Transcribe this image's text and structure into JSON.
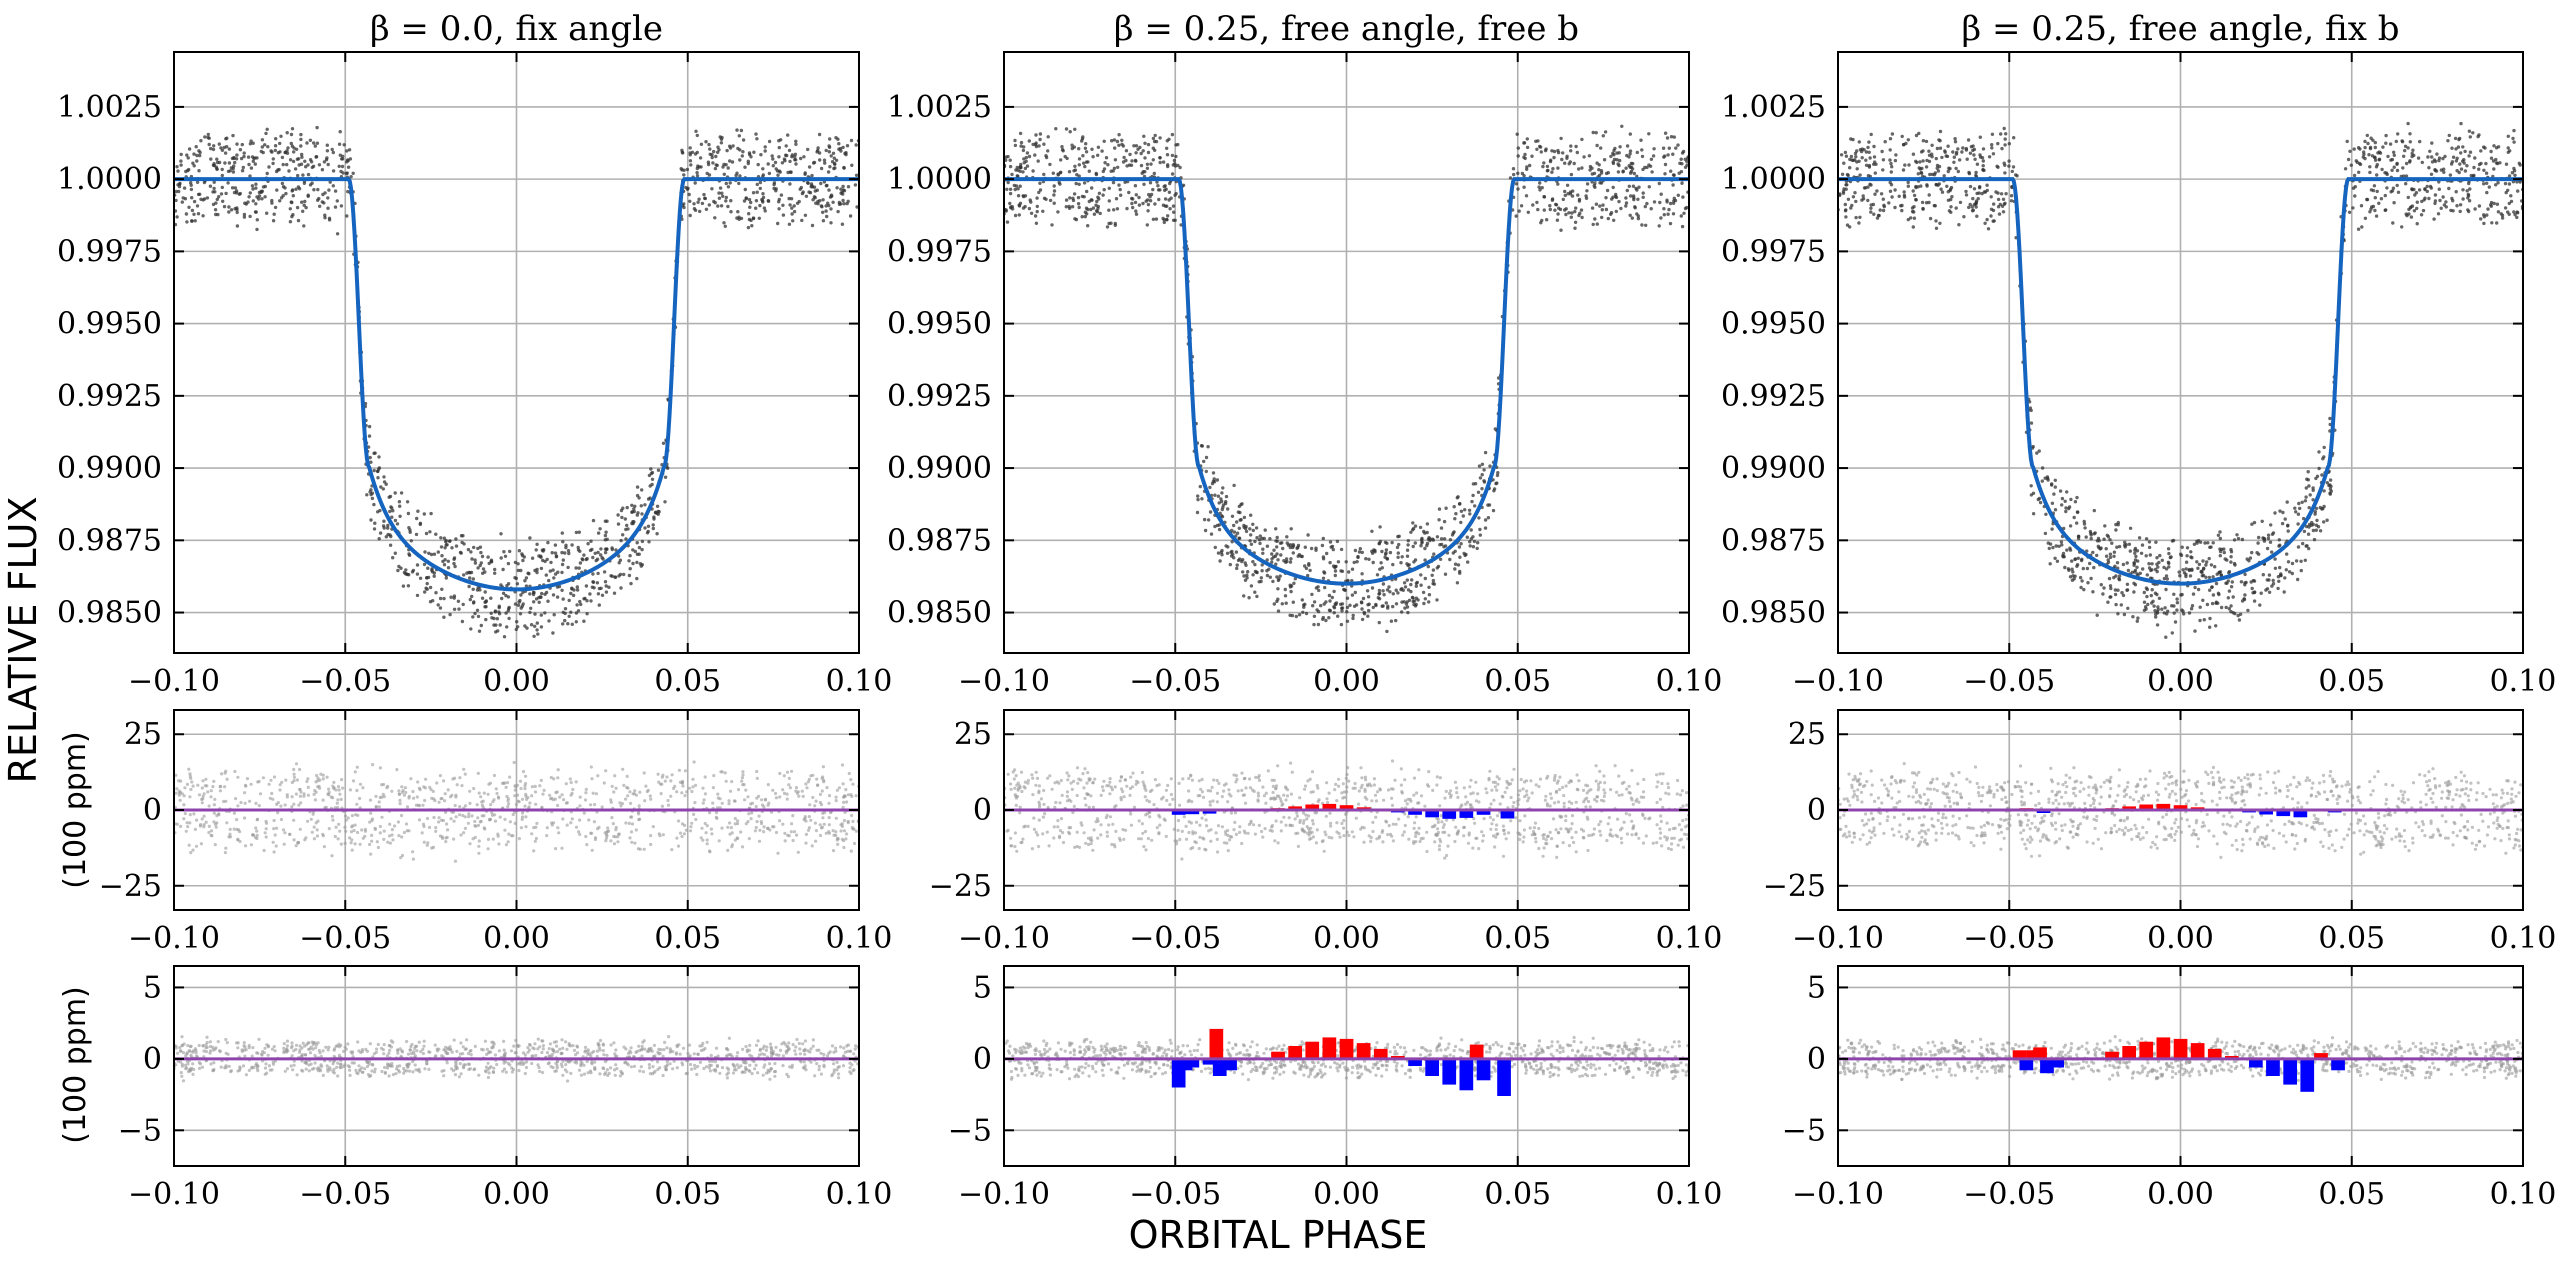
{
  "figure": {
    "ylabel": "RELATIVE FLUX",
    "xlabel": "ORBITAL PHASE",
    "residual_unit": "(100 ppm)"
  },
  "chart_data": [
    {
      "type": "scatter+line",
      "panel": "flux",
      "column": 0,
      "title": "β = 0.0, fix angle",
      "xlim": [
        -0.1,
        0.1
      ],
      "ylim": [
        0.9836,
        1.0044
      ],
      "xticks": [
        -0.1,
        -0.05,
        0.0,
        0.05,
        0.1
      ],
      "yticks": [
        0.985,
        0.9875,
        0.99,
        0.9925,
        0.995,
        0.9975,
        1.0,
        1.0025
      ],
      "ytick_labels": [
        "0.9850",
        "0.9875",
        "0.9900",
        "0.9925",
        "0.9950",
        "0.9975",
        "1.0000",
        "1.0025"
      ],
      "model": {
        "baseline": 1.0,
        "depth": 0.0142,
        "t14_half": 0.049,
        "t23_half": 0.043,
        "curvature": 0.0028,
        "color": "#1565c0"
      },
      "observations": {
        "noise": 0.0014,
        "color": "#333333"
      }
    },
    {
      "type": "scatter+line",
      "panel": "flux",
      "column": 1,
      "title": "β = 0.25, free angle, free b",
      "xlim": [
        -0.1,
        0.1
      ],
      "ylim": [
        0.9836,
        1.0044
      ],
      "xticks": [
        -0.1,
        -0.05,
        0.0,
        0.05,
        0.1
      ],
      "yticks": [
        0.985,
        0.9875,
        0.99,
        0.9925,
        0.995,
        0.9975,
        1.0,
        1.0025
      ],
      "ytick_labels": [
        "0.9850",
        "0.9875",
        "0.9900",
        "0.9925",
        "0.9950",
        "0.9975",
        "1.0000",
        "1.0025"
      ],
      "model": {
        "baseline": 1.0,
        "depth": 0.014,
        "t14_half": 0.049,
        "t23_half": 0.043,
        "curvature": 0.0026,
        "color": "#1565c0"
      },
      "observations": {
        "noise": 0.0014,
        "color": "#333333"
      }
    },
    {
      "type": "scatter+line",
      "panel": "flux",
      "column": 2,
      "title": "β = 0.25, free angle, fix b",
      "xlim": [
        -0.1,
        0.1
      ],
      "ylim": [
        0.9836,
        1.0044
      ],
      "xticks": [
        -0.1,
        -0.05,
        0.0,
        0.05,
        0.1
      ],
      "yticks": [
        0.985,
        0.9875,
        0.99,
        0.9925,
        0.995,
        0.9975,
        1.0,
        1.0025
      ],
      "ytick_labels": [
        "0.9850",
        "0.9875",
        "0.9900",
        "0.9925",
        "0.9950",
        "0.9975",
        "1.0000",
        "1.0025"
      ],
      "model": {
        "baseline": 1.0,
        "depth": 0.014,
        "t14_half": 0.049,
        "t23_half": 0.043,
        "curvature": 0.0026,
        "color": "#1565c0"
      },
      "observations": {
        "noise": 0.0014,
        "color": "#333333"
      }
    },
    {
      "type": "scatter+bar",
      "panel": "residual_100ppm_a",
      "column": 0,
      "xlim": [
        -0.1,
        0.1
      ],
      "ylim": [
        -33,
        33
      ],
      "xticks": [
        -0.1,
        -0.05,
        0.0,
        0.05,
        0.1
      ],
      "yticks": [
        -25,
        0,
        25
      ],
      "zero_line_color": "#8e44ad",
      "scatter_amplitude": 17,
      "bars": []
    },
    {
      "type": "scatter+bar",
      "panel": "residual_100ppm_a",
      "column": 1,
      "xlim": [
        -0.1,
        0.1
      ],
      "ylim": [
        -33,
        33
      ],
      "xticks": [
        -0.1,
        -0.05,
        0.0,
        0.05,
        0.1
      ],
      "yticks": [
        -25,
        0,
        25
      ],
      "zero_line_color": "#8e44ad",
      "scatter_amplitude": 17,
      "bars": [
        {
          "x": -0.049,
          "value": -1.6
        },
        {
          "x": -0.045,
          "value": -1.4
        },
        {
          "x": -0.04,
          "value": -1.2
        },
        {
          "x": -0.02,
          "value": 0.6
        },
        {
          "x": -0.015,
          "value": 1.2
        },
        {
          "x": -0.01,
          "value": 1.8
        },
        {
          "x": -0.005,
          "value": 2.0
        },
        {
          "x": 0.0,
          "value": 1.6
        },
        {
          "x": 0.005,
          "value": 0.9
        },
        {
          "x": 0.015,
          "value": -0.8
        },
        {
          "x": 0.02,
          "value": -1.6
        },
        {
          "x": 0.025,
          "value": -2.4
        },
        {
          "x": 0.03,
          "value": -2.9
        },
        {
          "x": 0.035,
          "value": -2.6
        },
        {
          "x": 0.04,
          "value": -1.6
        },
        {
          "x": 0.047,
          "value": -2.8
        }
      ]
    },
    {
      "type": "scatter+bar",
      "panel": "residual_100ppm_a",
      "column": 2,
      "xlim": [
        -0.1,
        0.1
      ],
      "ylim": [
        -33,
        33
      ],
      "xticks": [
        -0.1,
        -0.05,
        0.0,
        0.05,
        0.1
      ],
      "yticks": [
        -25,
        0,
        25
      ],
      "zero_line_color": "#8e44ad",
      "scatter_amplitude": 17,
      "bars": [
        {
          "x": -0.045,
          "value": 0.6
        },
        {
          "x": -0.04,
          "value": -1.0
        },
        {
          "x": -0.02,
          "value": 0.6
        },
        {
          "x": -0.015,
          "value": 1.2
        },
        {
          "x": -0.01,
          "value": 1.8
        },
        {
          "x": -0.005,
          "value": 2.0
        },
        {
          "x": 0.0,
          "value": 1.6
        },
        {
          "x": 0.005,
          "value": 0.9
        },
        {
          "x": 0.02,
          "value": -0.8
        },
        {
          "x": 0.025,
          "value": -1.5
        },
        {
          "x": 0.03,
          "value": -2.0
        },
        {
          "x": 0.035,
          "value": -2.4
        },
        {
          "x": 0.045,
          "value": -0.8
        }
      ]
    },
    {
      "type": "scatter+bar",
      "panel": "residual_100ppm_b",
      "column": 0,
      "xlim": [
        -0.1,
        0.1
      ],
      "ylim": [
        -7.5,
        6.5
      ],
      "xticks": [
        -0.1,
        -0.05,
        0.0,
        0.05,
        0.1
      ],
      "yticks": [
        -5,
        0,
        5
      ],
      "zero_line_color": "#8e44ad",
      "scatter_amplitude": 1.6,
      "bars": []
    },
    {
      "type": "scatter+bar",
      "panel": "residual_100ppm_b",
      "column": 1,
      "xlim": [
        -0.1,
        0.1
      ],
      "ylim": [
        -7.5,
        6.5
      ],
      "xticks": [
        -0.1,
        -0.05,
        0.0,
        0.05,
        0.1
      ],
      "yticks": [
        -5,
        0,
        5
      ],
      "zero_line_color": "#8e44ad",
      "scatter_amplitude": 1.6,
      "bars": [
        {
          "x": -0.049,
          "value": -2.0
        },
        {
          "x": -0.047,
          "value": -0.8
        },
        {
          "x": -0.045,
          "value": -0.6
        },
        {
          "x": -0.04,
          "value": -0.4
        },
        {
          "x": -0.038,
          "value": 2.1
        },
        {
          "x": -0.037,
          "value": -1.2
        },
        {
          "x": -0.034,
          "value": -0.8
        },
        {
          "x": -0.02,
          "value": 0.5
        },
        {
          "x": -0.015,
          "value": 0.9
        },
        {
          "x": -0.01,
          "value": 1.2
        },
        {
          "x": -0.005,
          "value": 1.5
        },
        {
          "x": 0.0,
          "value": 1.4
        },
        {
          "x": 0.005,
          "value": 1.1
        },
        {
          "x": 0.01,
          "value": 0.7
        },
        {
          "x": 0.015,
          "value": 0.2
        },
        {
          "x": 0.02,
          "value": -0.5
        },
        {
          "x": 0.025,
          "value": -1.2
        },
        {
          "x": 0.03,
          "value": -1.8
        },
        {
          "x": 0.035,
          "value": -2.2
        },
        {
          "x": 0.038,
          "value": 1.0
        },
        {
          "x": 0.04,
          "value": -1.5
        },
        {
          "x": 0.046,
          "value": -2.6
        }
      ]
    },
    {
      "type": "scatter+bar",
      "panel": "residual_100ppm_b",
      "column": 2,
      "xlim": [
        -0.1,
        0.1
      ],
      "ylim": [
        -7.5,
        6.5
      ],
      "xticks": [
        -0.1,
        -0.05,
        0.0,
        0.05,
        0.1
      ],
      "yticks": [
        -5,
        0,
        5
      ],
      "zero_line_color": "#8e44ad",
      "scatter_amplitude": 1.6,
      "bars": [
        {
          "x": -0.047,
          "value": 0.6
        },
        {
          "x": -0.045,
          "value": -0.8
        },
        {
          "x": -0.043,
          "value": 0.6
        },
        {
          "x": -0.041,
          "value": 0.8
        },
        {
          "x": -0.039,
          "value": -1.0
        },
        {
          "x": -0.036,
          "value": -0.6
        },
        {
          "x": -0.02,
          "value": 0.5
        },
        {
          "x": -0.015,
          "value": 0.9
        },
        {
          "x": -0.01,
          "value": 1.2
        },
        {
          "x": -0.005,
          "value": 1.5
        },
        {
          "x": 0.0,
          "value": 1.4
        },
        {
          "x": 0.005,
          "value": 1.1
        },
        {
          "x": 0.01,
          "value": 0.7
        },
        {
          "x": 0.015,
          "value": 0.2
        },
        {
          "x": 0.022,
          "value": -0.6
        },
        {
          "x": 0.027,
          "value": -1.2
        },
        {
          "x": 0.032,
          "value": -1.8
        },
        {
          "x": 0.037,
          "value": -2.3
        },
        {
          "x": 0.041,
          "value": 0.4
        },
        {
          "x": 0.046,
          "value": -0.8
        }
      ]
    }
  ]
}
